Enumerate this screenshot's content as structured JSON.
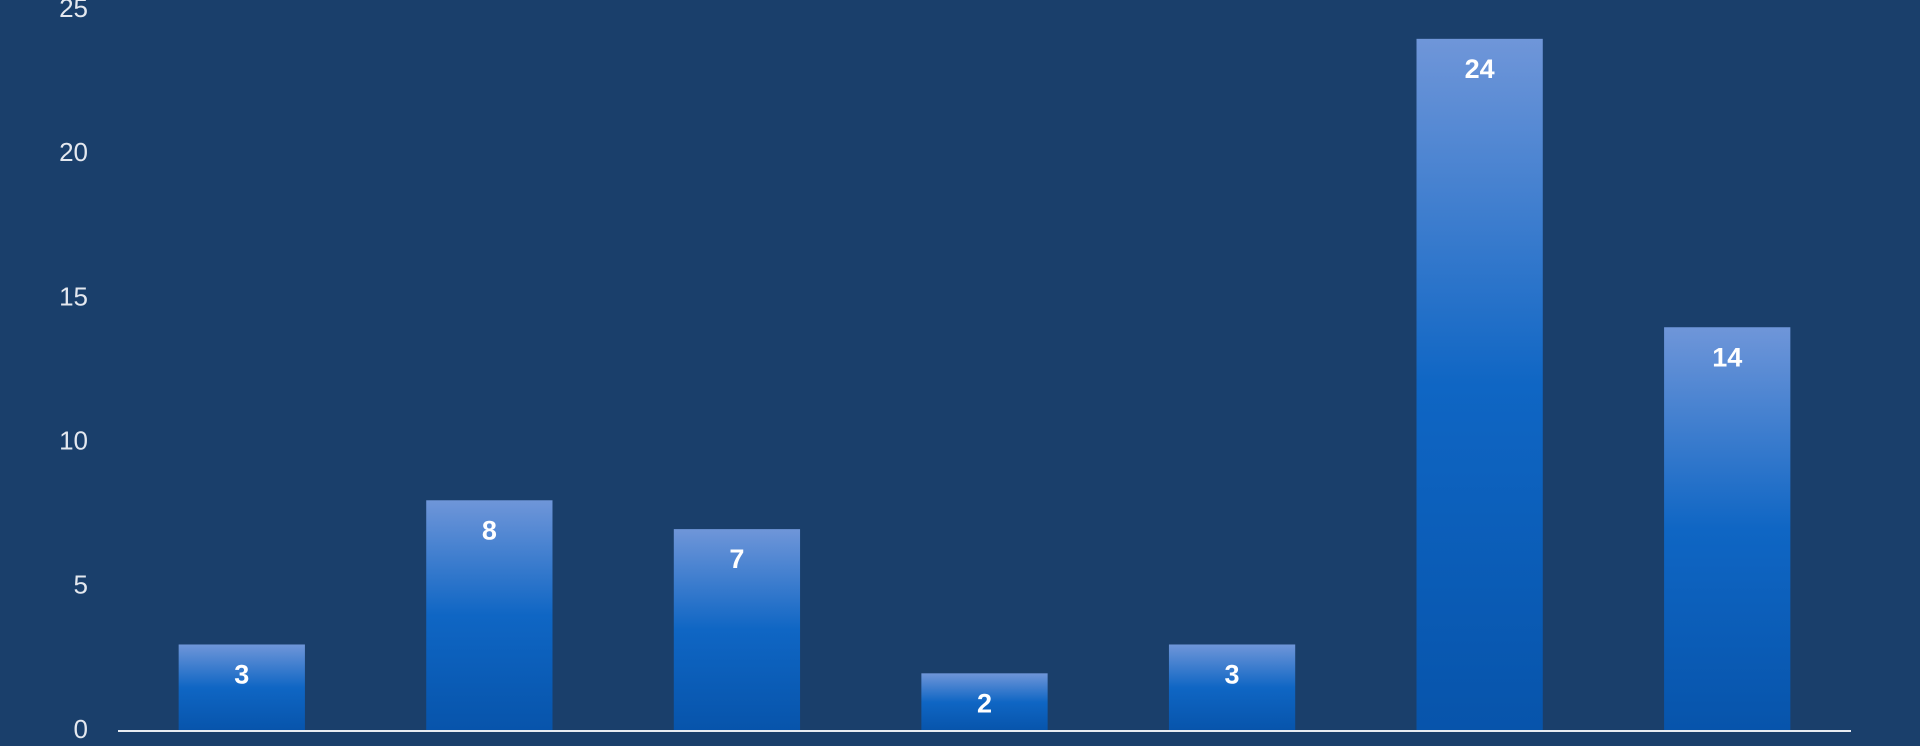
{
  "chart_data": {
    "type": "bar",
    "categories": [
      null,
      null,
      null,
      null,
      null,
      null,
      null
    ],
    "values": [
      3,
      8,
      7,
      2,
      3,
      24,
      14
    ],
    "ylim": [
      0,
      25
    ],
    "yticks": [
      0,
      5,
      10,
      15,
      20,
      25
    ]
  }
}
